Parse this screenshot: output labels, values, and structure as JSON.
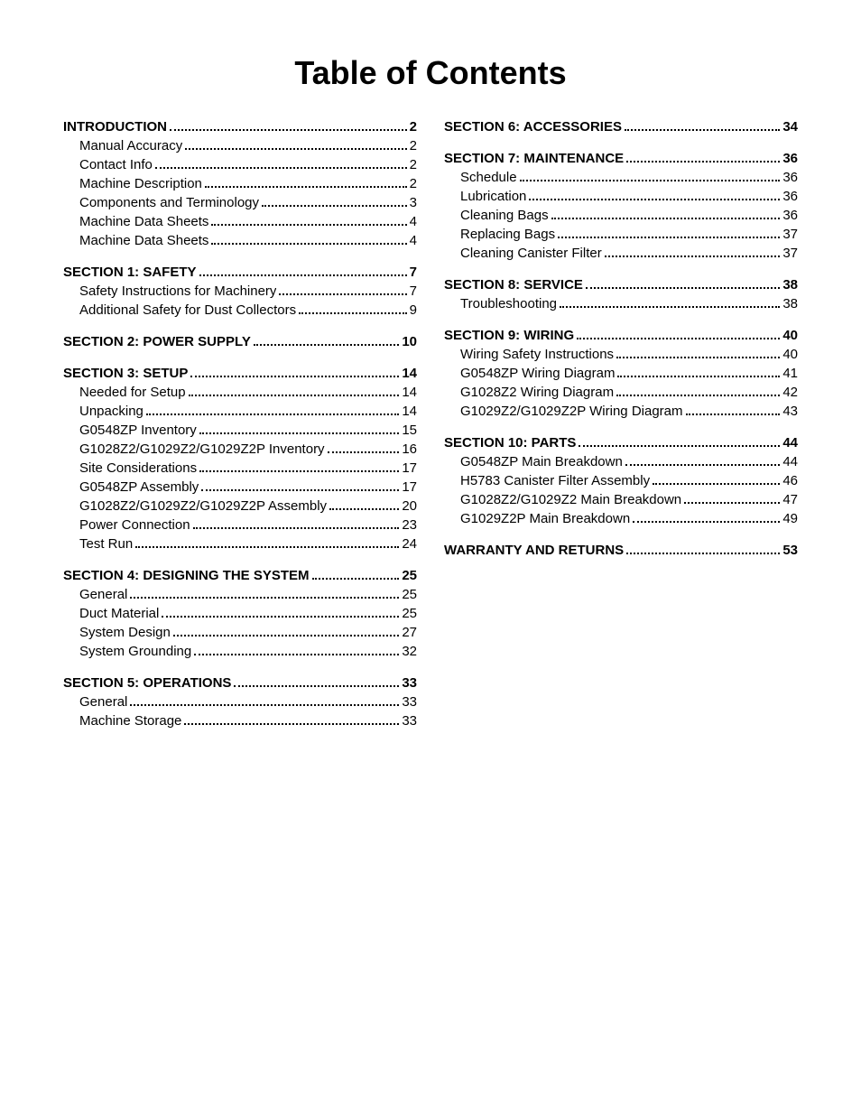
{
  "title": "Table of Contents",
  "columns": [
    [
      {
        "header": {
          "label": "INTRODUCTION",
          "page": "2"
        },
        "items": [
          {
            "label": "Manual Accuracy",
            "page": "2"
          },
          {
            "label": "Contact Info",
            "page": "2"
          },
          {
            "label": "Machine Description",
            "page": "2"
          },
          {
            "label": "Components and Terminology",
            "page": "3"
          },
          {
            "label": "Machine Data Sheets",
            "page": "4"
          },
          {
            "label": "Machine Data Sheets",
            "page": "4"
          }
        ]
      },
      {
        "header": {
          "label": "SECTION 1: SAFETY",
          "page": "7"
        },
        "items": [
          {
            "label": "Safety Instructions for Machinery",
            "page": "7"
          },
          {
            "label": "Additional Safety for Dust Collectors",
            "page": "9"
          }
        ]
      },
      {
        "header": {
          "label": "SECTION 2: POWER SUPPLY",
          "page": "10"
        },
        "items": []
      },
      {
        "header": {
          "label": "SECTION 3: SETUP",
          "page": "14"
        },
        "items": [
          {
            "label": "Needed for Setup",
            "page": "14"
          },
          {
            "label": "Unpacking",
            "page": "14"
          },
          {
            "label": "G0548ZP Inventory",
            "page": "15"
          },
          {
            "label": "G1028Z2/G1029Z2/G1029Z2P Inventory",
            "page": "16"
          },
          {
            "label": "Site Considerations",
            "page": "17"
          },
          {
            "label": "G0548ZP Assembly",
            "page": "17"
          },
          {
            "label": "G1028Z2/G1029Z2/G1029Z2P Assembly",
            "page": "20"
          },
          {
            "label": "Power Connection",
            "page": "23"
          },
          {
            "label": "Test Run",
            "page": "24"
          }
        ]
      },
      {
        "header": {
          "label": "SECTION 4: DESIGNING THE SYSTEM",
          "page": "25"
        },
        "items": [
          {
            "label": "General",
            "page": "25"
          },
          {
            "label": "Duct Material",
            "page": "25"
          },
          {
            "label": "System Design",
            "page": "27"
          },
          {
            "label": "System Grounding",
            "page": "32"
          }
        ]
      },
      {
        "header": {
          "label": "SECTION 5: OPERATIONS",
          "page": "33"
        },
        "items": [
          {
            "label": "General",
            "page": "33"
          },
          {
            "label": "Machine Storage",
            "page": "33"
          }
        ]
      }
    ],
    [
      {
        "header": {
          "label": "SECTION 6: ACCESSORIES",
          "page": "34"
        },
        "items": []
      },
      {
        "header": {
          "label": "SECTION 7: MAINTENANCE",
          "page": "36"
        },
        "items": [
          {
            "label": "Schedule",
            "page": "36"
          },
          {
            "label": "Lubrication",
            "page": "36"
          },
          {
            "label": "Cleaning Bags",
            "page": "36"
          },
          {
            "label": "Replacing Bags",
            "page": "37"
          },
          {
            "label": "Cleaning Canister Filter",
            "page": "37"
          }
        ]
      },
      {
        "header": {
          "label": "SECTION 8: SERVICE",
          "page": "38"
        },
        "items": [
          {
            "label": "Troubleshooting",
            "page": "38"
          }
        ]
      },
      {
        "header": {
          "label": "SECTION 9: WIRING",
          "page": "40"
        },
        "items": [
          {
            "label": "Wiring Safety Instructions",
            "page": "40"
          },
          {
            "label": "G0548ZP Wiring Diagram",
            "page": "41"
          },
          {
            "label": "G1028Z2 Wiring Diagram",
            "page": "42"
          },
          {
            "label": "G1029Z2/G1029Z2P Wiring Diagram",
            "page": "43"
          }
        ]
      },
      {
        "header": {
          "label": "SECTION 10: PARTS",
          "page": "44"
        },
        "items": [
          {
            "label": "G0548ZP Main Breakdown",
            "page": "44"
          },
          {
            "label": "H5783 Canister Filter Assembly",
            "page": "46"
          },
          {
            "label": "G1028Z2/G1029Z2 Main Breakdown",
            "page": "47"
          },
          {
            "label": "G1029Z2P Main Breakdown",
            "page": "49"
          }
        ]
      },
      {
        "header": {
          "label": "WARRANTY AND RETURNS",
          "page": "53"
        },
        "items": []
      }
    ]
  ]
}
